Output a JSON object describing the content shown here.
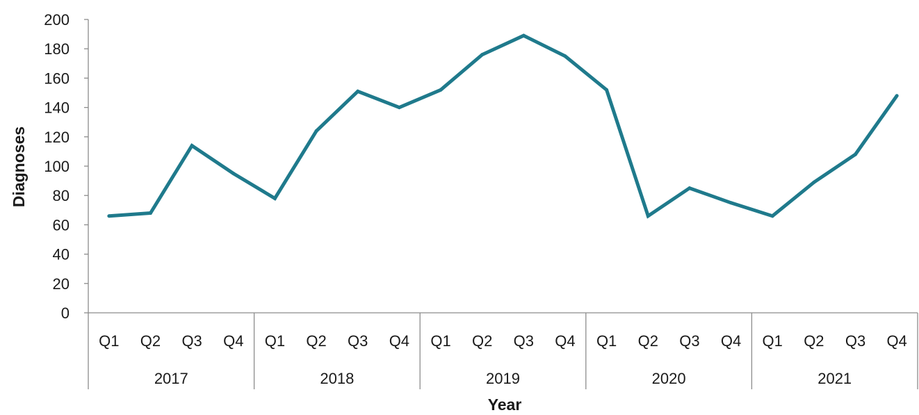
{
  "chart_data": {
    "type": "line",
    "title": "",
    "xlabel": "Year",
    "ylabel": "Diagnoses",
    "ylim": [
      0,
      200
    ],
    "yticks": [
      0,
      20,
      40,
      60,
      80,
      100,
      120,
      140,
      160,
      180,
      200
    ],
    "groups": [
      {
        "label": "2017",
        "quarters": [
          "Q1",
          "Q2",
          "Q3",
          "Q4"
        ]
      },
      {
        "label": "2018",
        "quarters": [
          "Q1",
          "Q2",
          "Q3",
          "Q4"
        ]
      },
      {
        "label": "2019",
        "quarters": [
          "Q1",
          "Q2",
          "Q3",
          "Q4"
        ]
      },
      {
        "label": "2020",
        "quarters": [
          "Q1",
          "Q2",
          "Q3",
          "Q4"
        ]
      },
      {
        "label": "2021",
        "quarters": [
          "Q1",
          "Q2",
          "Q3",
          "Q4"
        ]
      }
    ],
    "series": [
      {
        "values": [
          66,
          68,
          114,
          95,
          78,
          124,
          151,
          140,
          152,
          176,
          189,
          175,
          152,
          66,
          85,
          75,
          66,
          89,
          108,
          148
        ],
        "color": "#1f7a8c"
      }
    ],
    "grid": false,
    "legend": "none"
  }
}
